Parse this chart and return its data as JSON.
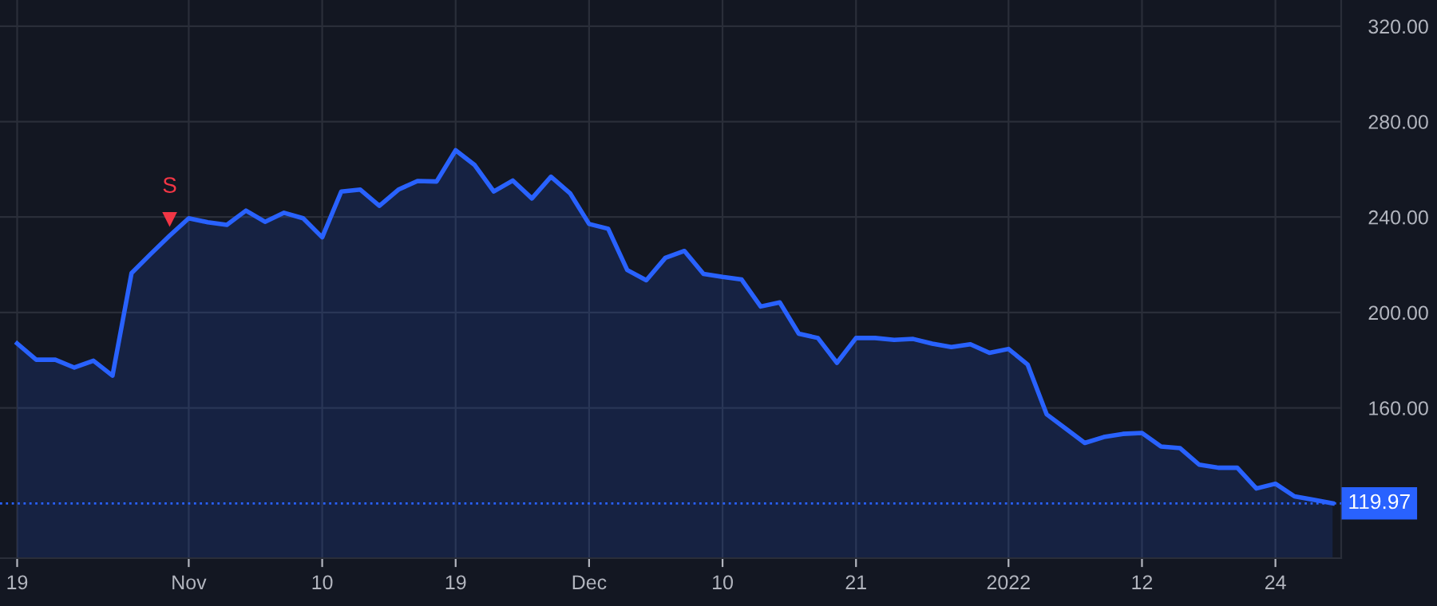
{
  "chart_data": {
    "type": "area",
    "categories": [
      "19",
      null,
      null,
      null,
      null,
      null,
      null,
      null,
      null,
      "Nov",
      null,
      null,
      null,
      null,
      null,
      null,
      "10",
      null,
      null,
      null,
      null,
      null,
      null,
      "19",
      null,
      null,
      null,
      null,
      null,
      null,
      "Dec",
      null,
      null,
      null,
      null,
      null,
      null,
      "10",
      null,
      null,
      null,
      null,
      null,
      null,
      "21",
      null,
      null,
      null,
      null,
      null,
      null,
      null,
      "2022",
      null,
      null,
      null,
      null,
      null,
      null,
      "12",
      null,
      null,
      null,
      null,
      null,
      null,
      "24",
      null,
      null,
      null
    ],
    "series": [
      {
        "color": "#2962ff",
        "values": [
          187,
          180.2,
          180.2,
          176.9,
          179.8,
          173.5,
          216.5,
          224.5,
          232.2,
          239.5,
          237.8,
          236.7,
          242.7,
          238,
          241.8,
          239.5,
          231.5,
          250.7,
          251.5,
          244.7,
          251.5,
          255.1,
          254.9,
          268,
          261.8,
          250.7,
          255.3,
          247.8,
          256.9,
          250,
          237.1,
          235.1,
          217.8,
          213.5,
          222.9,
          225.8,
          216.2,
          214.9,
          213.8,
          202.5,
          204.2,
          191.1,
          189.3,
          178.9,
          189.3,
          189.3,
          188.5,
          188.9,
          186.9,
          185.5,
          186.7,
          183.1,
          184.7,
          178.2,
          157.3,
          151.3,
          145.3,
          147.8,
          149.1,
          149.5,
          143.8,
          143.1,
          136.2,
          134.9,
          134.9,
          126.2,
          128.2,
          122.9,
          121.5,
          119.97
        ]
      },
      {
        "type": "scatter",
        "color": "#f23645",
        "marker": "triangle",
        "values": [
          null,
          null,
          null,
          null,
          null,
          null,
          null,
          null,
          239,
          null,
          null,
          null,
          null,
          null,
          null,
          null,
          null,
          null,
          null,
          null,
          null,
          null,
          null,
          null,
          null,
          null,
          null,
          null,
          null,
          null,
          null,
          null,
          null,
          null,
          null,
          null,
          null,
          null,
          null,
          null,
          null,
          null,
          null,
          null,
          null,
          null,
          null,
          null,
          null,
          null,
          null,
          null,
          null,
          null,
          null,
          null,
          null,
          null,
          null,
          null,
          null,
          null,
          null,
          null,
          null,
          null,
          null,
          null,
          null,
          null
        ]
      }
    ],
    "annotations": [
      "S"
    ],
    "ylim": [
      97,
      331
    ],
    "yticks": [
      {
        "value": 160,
        "label": "160.00"
      },
      {
        "value": 200,
        "label": "200.00"
      },
      {
        "value": 240,
        "label": "240.00"
      },
      {
        "value": 280,
        "label": "280.00"
      },
      {
        "value": 320,
        "label": "320.00"
      }
    ],
    "ref_lines": [
      {
        "axis": "y",
        "value": 119.97,
        "label": "119.97",
        "color": "#2962ff",
        "line_style": "dotted"
      }
    ],
    "grid": true
  }
}
